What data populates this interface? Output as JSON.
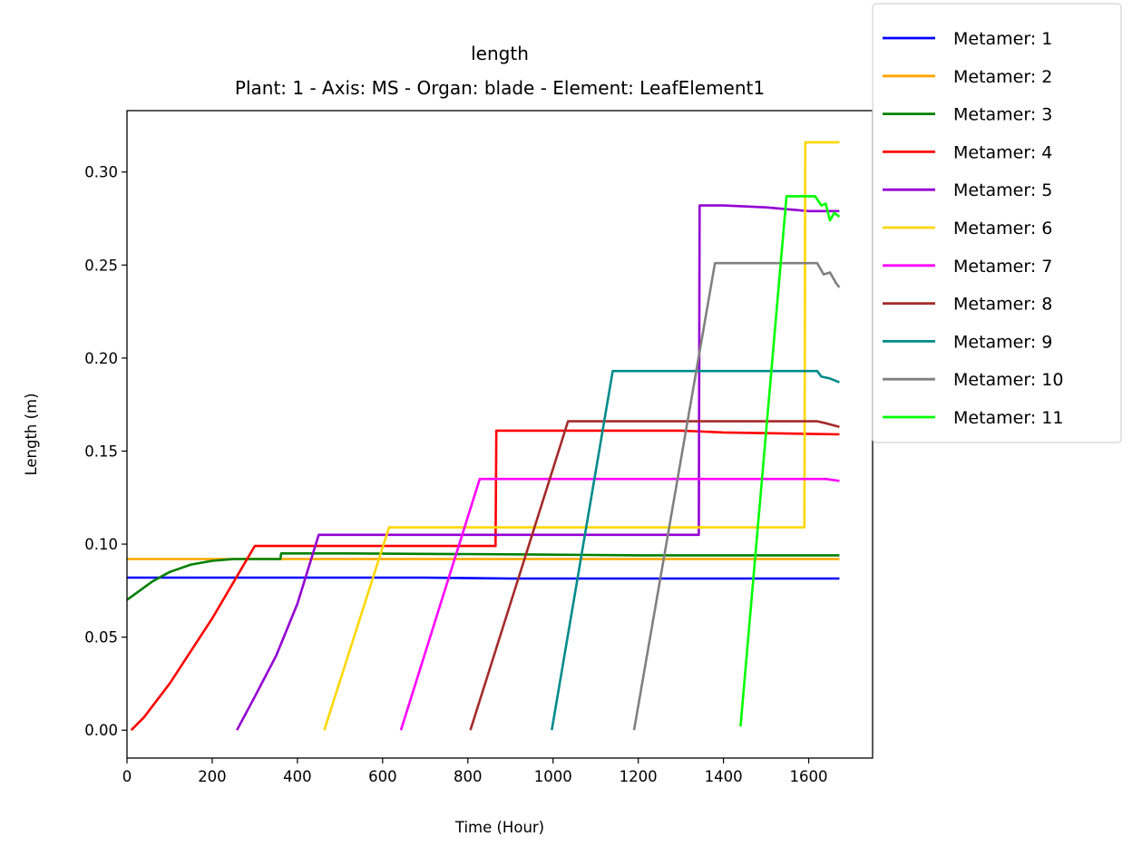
{
  "chart_data": {
    "type": "line",
    "title": "length",
    "subtitle": "Plant: 1 - Axis: MS - Organ: blade - Element: LeafElement1",
    "xlabel": "Time (Hour)",
    "ylabel": "Length (m)",
    "xlim": [
      0,
      1750
    ],
    "ylim": [
      -0.015,
      0.333
    ],
    "xticks": [
      0,
      200,
      400,
      600,
      800,
      1000,
      1200,
      1400,
      1600
    ],
    "xtick_labels": [
      "0",
      "200",
      "400",
      "600",
      "800",
      "1000",
      "1200",
      "1400",
      "1600"
    ],
    "yticks": [
      0.0,
      0.05,
      0.1,
      0.15,
      0.2,
      0.25,
      0.3
    ],
    "ytick_labels": [
      "0.00",
      "0.05",
      "0.10",
      "0.15",
      "0.20",
      "0.25",
      "0.30"
    ],
    "grid": false,
    "legend_position": "outside-top-right",
    "series": [
      {
        "name": "Metamer: 1",
        "color": "#0000ff",
        "x": [
          0,
          400,
          700,
          900,
          1672
        ],
        "y": [
          0.082,
          0.082,
          0.082,
          0.0815,
          0.0815
        ]
      },
      {
        "name": "Metamer: 2",
        "color": "#ffa500",
        "x": [
          0,
          300,
          1672
        ],
        "y": [
          0.092,
          0.092,
          0.092
        ]
      },
      {
        "name": "Metamer: 3",
        "color": "#008000",
        "x": [
          0,
          30,
          60,
          100,
          150,
          200,
          250,
          300,
          360,
          362,
          500,
          900,
          1200,
          1672
        ],
        "y": [
          0.07,
          0.075,
          0.08,
          0.085,
          0.089,
          0.091,
          0.092,
          0.092,
          0.092,
          0.095,
          0.095,
          0.0945,
          0.094,
          0.094
        ]
      },
      {
        "name": "Metamer: 4",
        "color": "#ff0000",
        "x": [
          10,
          40,
          100,
          200,
          300,
          865,
          867,
          1300,
          1400,
          1672
        ],
        "y": [
          0.0,
          0.007,
          0.025,
          0.06,
          0.099,
          0.099,
          0.161,
          0.161,
          0.16,
          0.159
        ]
      },
      {
        "name": "Metamer: 5",
        "color": "#9400d3",
        "x": [
          258,
          300,
          350,
          400,
          450,
          1342,
          1344,
          1400,
          1500,
          1600,
          1672
        ],
        "y": [
          0.0,
          0.018,
          0.04,
          0.068,
          0.105,
          0.105,
          0.282,
          0.282,
          0.281,
          0.279,
          0.279
        ]
      },
      {
        "name": "Metamer: 6",
        "color": "#ffd700",
        "x": [
          463,
          615,
          1590,
          1592,
          1672
        ],
        "y": [
          0.0,
          0.109,
          0.109,
          0.316,
          0.316
        ]
      },
      {
        "name": "Metamer: 7",
        "color": "#ff00ff",
        "x": [
          643,
          828,
          1640,
          1672
        ],
        "y": [
          0.0,
          0.135,
          0.135,
          0.134
        ]
      },
      {
        "name": "Metamer: 8",
        "color": "#a52a2a",
        "x": [
          806,
          1035,
          1620,
          1640,
          1672
        ],
        "y": [
          0.0,
          0.166,
          0.166,
          0.165,
          0.163
        ]
      },
      {
        "name": "Metamer: 9",
        "color": "#008b8b",
        "x": [
          997,
          1140,
          1620,
          1630,
          1650,
          1672
        ],
        "y": [
          0.0,
          0.193,
          0.193,
          0.19,
          0.189,
          0.187
        ]
      },
      {
        "name": "Metamer: 10",
        "color": "#808080",
        "x": [
          1190,
          1380,
          1620,
          1635,
          1650,
          1665,
          1672
        ],
        "y": [
          0.0,
          0.251,
          0.251,
          0.245,
          0.246,
          0.24,
          0.238
        ]
      },
      {
        "name": "Metamer: 11",
        "color": "#00ff00",
        "x": [
          1440,
          1548,
          1615,
          1630,
          1640,
          1650,
          1660,
          1672
        ],
        "y": [
          0.002,
          0.287,
          0.287,
          0.282,
          0.283,
          0.274,
          0.278,
          0.276
        ]
      }
    ]
  }
}
